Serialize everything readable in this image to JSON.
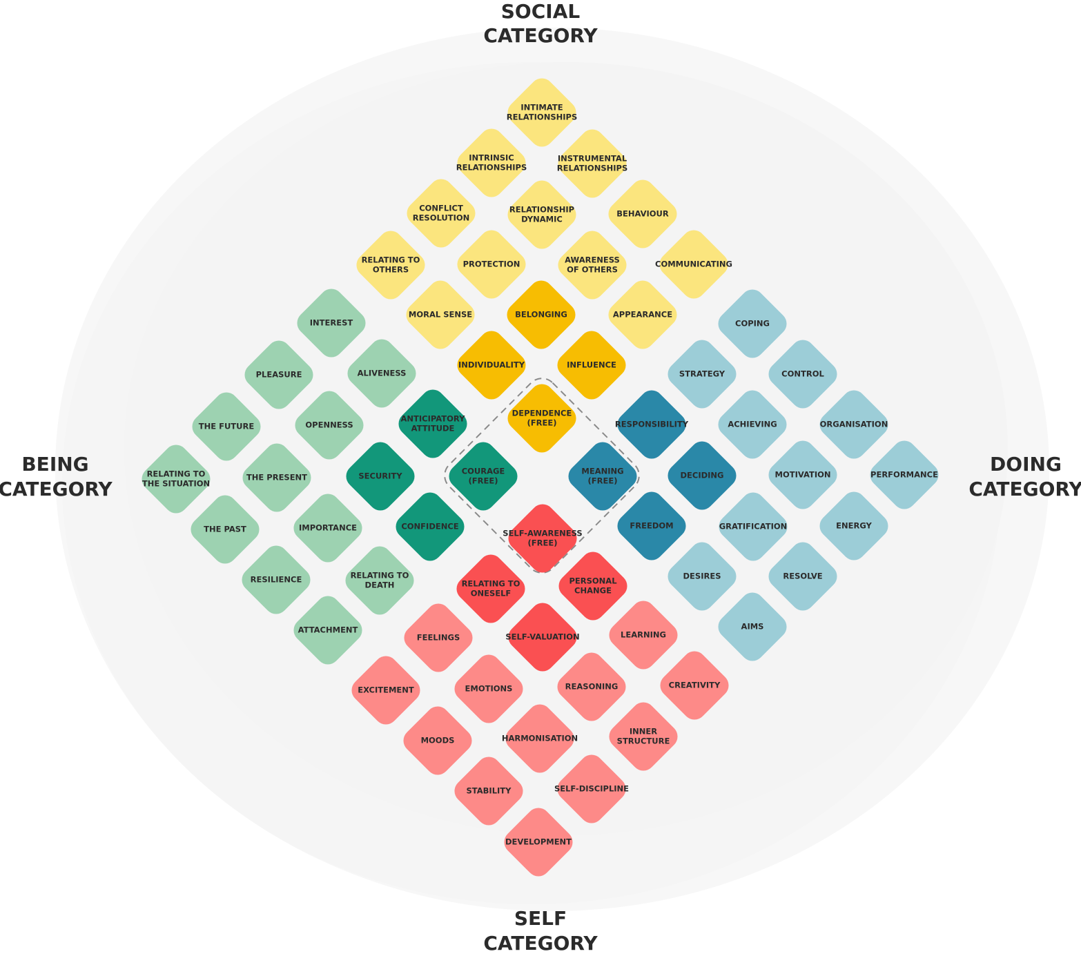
{
  "categories": {
    "top": [
      "SOCIAL",
      "CATEGORY"
    ],
    "left": [
      "BEING",
      "CATEGORY"
    ],
    "right": [
      "DOING",
      "CATEGORY"
    ],
    "bottom": [
      "SELF",
      "CATEGORY"
    ]
  },
  "tiles": [
    {
      "lines": [
        "INTIMATE",
        "RELATIONSHIPS"
      ],
      "color": "#fbe57e"
    },
    {
      "lines": [
        "INTRINSIC",
        "RELATIONSHIPS"
      ],
      "color": "#fbe57e"
    },
    {
      "lines": [
        "INSTRUMENTAL",
        "RELATIONSHIPS"
      ],
      "color": "#fbe57e"
    },
    {
      "lines": [
        "CONFLICT",
        "RESOLUTION"
      ],
      "color": "#fbe57e"
    },
    {
      "lines": [
        "RELATIONSHIP",
        "DYNAMIC"
      ],
      "color": "#fbe57e"
    },
    {
      "lines": [
        "BEHAVIOUR"
      ],
      "color": "#fbe57e"
    },
    {
      "lines": [
        "RELATING TO",
        "OTHERS"
      ],
      "color": "#fbe57e"
    },
    {
      "lines": [
        "PROTECTION"
      ],
      "color": "#fbe57e"
    },
    {
      "lines": [
        "AWARENESS",
        "OF OTHERS"
      ],
      "color": "#fbe57e"
    },
    {
      "lines": [
        "COMMUNICATING"
      ],
      "color": "#fbe57e"
    },
    {
      "lines": [
        "MORAL SENSE"
      ],
      "color": "#fbe57e"
    },
    {
      "lines": [
        "APPEARANCE"
      ],
      "color": "#fbe57e"
    },
    {
      "lines": [
        "BELONGING"
      ],
      "color": "#f7bd02"
    },
    {
      "lines": [
        "INDIVIDUALITY"
      ],
      "color": "#f7bd02"
    },
    {
      "lines": [
        "INFLUENCE"
      ],
      "color": "#f7bd02"
    },
    {
      "lines": [
        "DEPENDENCE",
        "(FREE)"
      ],
      "color": "#f7bd02"
    },
    {
      "lines": [
        "INTEREST"
      ],
      "color": "#9dd2b1"
    },
    {
      "lines": [
        "PLEASURE"
      ],
      "color": "#9dd2b1"
    },
    {
      "lines": [
        "ALIVENESS"
      ],
      "color": "#9dd2b1"
    },
    {
      "lines": [
        "THE FUTURE"
      ],
      "color": "#9dd2b1"
    },
    {
      "lines": [
        "OPENNESS"
      ],
      "color": "#9dd2b1"
    },
    {
      "lines": [
        "RELATING TO",
        "THE SITUATION"
      ],
      "color": "#9dd2b1"
    },
    {
      "lines": [
        "THE PRESENT"
      ],
      "color": "#9dd2b1"
    },
    {
      "lines": [
        "THE PAST"
      ],
      "color": "#9dd2b1"
    },
    {
      "lines": [
        "IMPORTANCE"
      ],
      "color": "#9dd2b1"
    },
    {
      "lines": [
        "RESILIENCE"
      ],
      "color": "#9dd2b1"
    },
    {
      "lines": [
        "RELATING TO",
        "DEATH"
      ],
      "color": "#9dd2b1"
    },
    {
      "lines": [
        "ATTACHMENT"
      ],
      "color": "#9dd2b1"
    },
    {
      "lines": [
        "ANTICIPATORY",
        "ATTITUDE"
      ],
      "color": "#12977a"
    },
    {
      "lines": [
        "SECURITY"
      ],
      "color": "#12977a"
    },
    {
      "lines": [
        "COURAGE",
        "(FREE)"
      ],
      "color": "#12977a"
    },
    {
      "lines": [
        "CONFIDENCE"
      ],
      "color": "#12977a"
    },
    {
      "lines": [
        "RESPONSIBILITY"
      ],
      "color": "#2a88a8"
    },
    {
      "lines": [
        "MEANING",
        "(FREE)"
      ],
      "color": "#2a88a8"
    },
    {
      "lines": [
        "DECIDING"
      ],
      "color": "#2a88a8"
    },
    {
      "lines": [
        "FREEDOM"
      ],
      "color": "#2a88a8"
    },
    {
      "lines": [
        "COPING"
      ],
      "color": "#9ccdd7"
    },
    {
      "lines": [
        "STRATEGY"
      ],
      "color": "#9ccdd7"
    },
    {
      "lines": [
        "CONTROL"
      ],
      "color": "#9ccdd7"
    },
    {
      "lines": [
        "ACHIEVING"
      ],
      "color": "#9ccdd7"
    },
    {
      "lines": [
        "ORGANISATION"
      ],
      "color": "#9ccdd7"
    },
    {
      "lines": [
        "MOTIVATION"
      ],
      "color": "#9ccdd7"
    },
    {
      "lines": [
        "PERFORMANCE"
      ],
      "color": "#9ccdd7"
    },
    {
      "lines": [
        "GRATIFICATION"
      ],
      "color": "#9ccdd7"
    },
    {
      "lines": [
        "ENERGY"
      ],
      "color": "#9ccdd7"
    },
    {
      "lines": [
        "DESIRES"
      ],
      "color": "#9ccdd7"
    },
    {
      "lines": [
        "RESOLVE"
      ],
      "color": "#9ccdd7"
    },
    {
      "lines": [
        "AIMS"
      ],
      "color": "#9ccdd7"
    },
    {
      "lines": [
        "SELF-AWARENESS",
        "(FREE)"
      ],
      "color": "#fa5052"
    },
    {
      "lines": [
        "RELATING TO",
        "ONESELF"
      ],
      "color": "#fa5052"
    },
    {
      "lines": [
        "PERSONAL",
        "CHANGE"
      ],
      "color": "#fa5052"
    },
    {
      "lines": [
        "SELF-VALUATION"
      ],
      "color": "#fa5052"
    },
    {
      "lines": [
        "FEELINGS"
      ],
      "color": "#fd8a88"
    },
    {
      "lines": [
        "LEARNING"
      ],
      "color": "#fd8a88"
    },
    {
      "lines": [
        "EXCITEMENT"
      ],
      "color": "#fd8a88"
    },
    {
      "lines": [
        "EMOTIONS"
      ],
      "color": "#fd8a88"
    },
    {
      "lines": [
        "REASONING"
      ],
      "color": "#fd8a88"
    },
    {
      "lines": [
        "CREATIVITY"
      ],
      "color": "#fd8a88"
    },
    {
      "lines": [
        "MOODS"
      ],
      "color": "#fd8a88"
    },
    {
      "lines": [
        "HARMONISATION"
      ],
      "color": "#fd8a88"
    },
    {
      "lines": [
        "INNER",
        "STRUCTURE"
      ],
      "color": "#fd8a88"
    },
    {
      "lines": [
        "STABILITY"
      ],
      "color": "#fd8a88"
    },
    {
      "lines": [
        "SELF-DISCIPLINE"
      ],
      "color": "#fd8a88"
    },
    {
      "lines": [
        "DEVELOPMENT"
      ],
      "color": "#fd8a88"
    }
  ]
}
